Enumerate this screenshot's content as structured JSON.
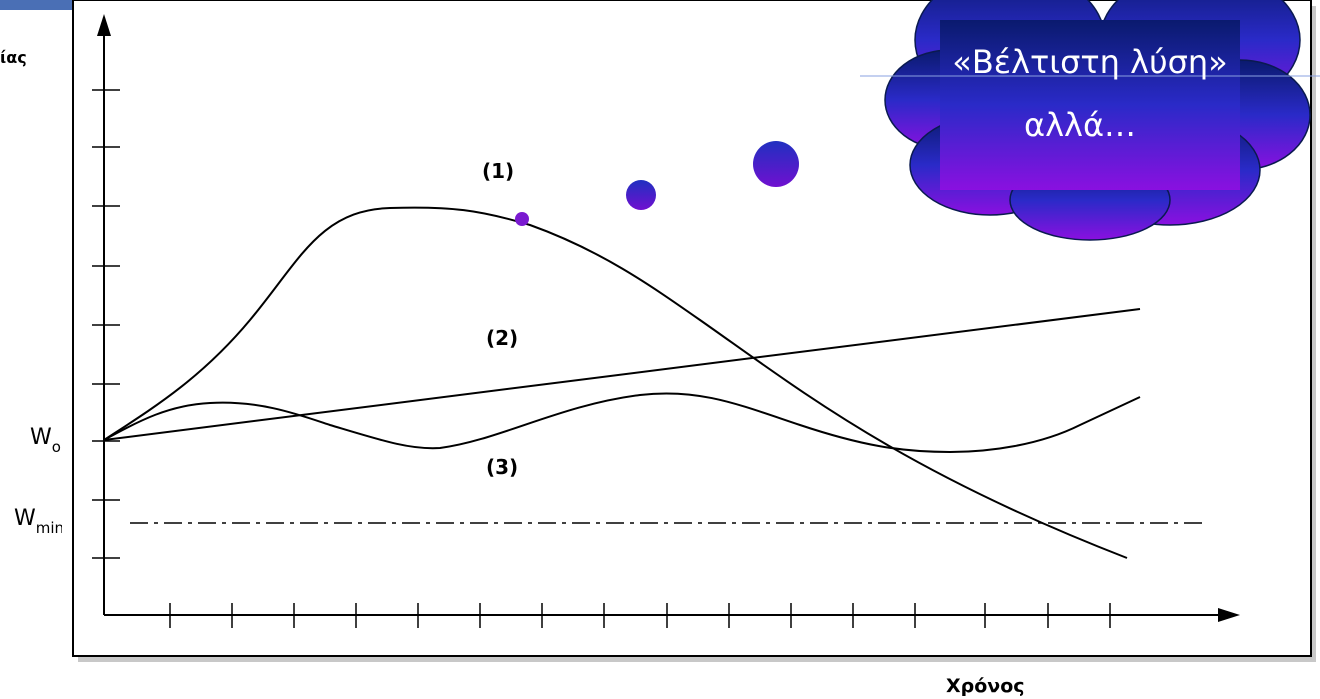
{
  "left_label": "ίας",
  "w_o": {
    "base": "W",
    "sub": "o"
  },
  "w_min": {
    "base": "W",
    "sub": "min"
  },
  "curve_labels": [
    "(1)",
    "(2)",
    "(3)"
  ],
  "x_axis_label": "Χρόνος",
  "callout": {
    "line1": "«Βέλτιστη λύση»",
    "line2": "αλλά…"
  }
}
